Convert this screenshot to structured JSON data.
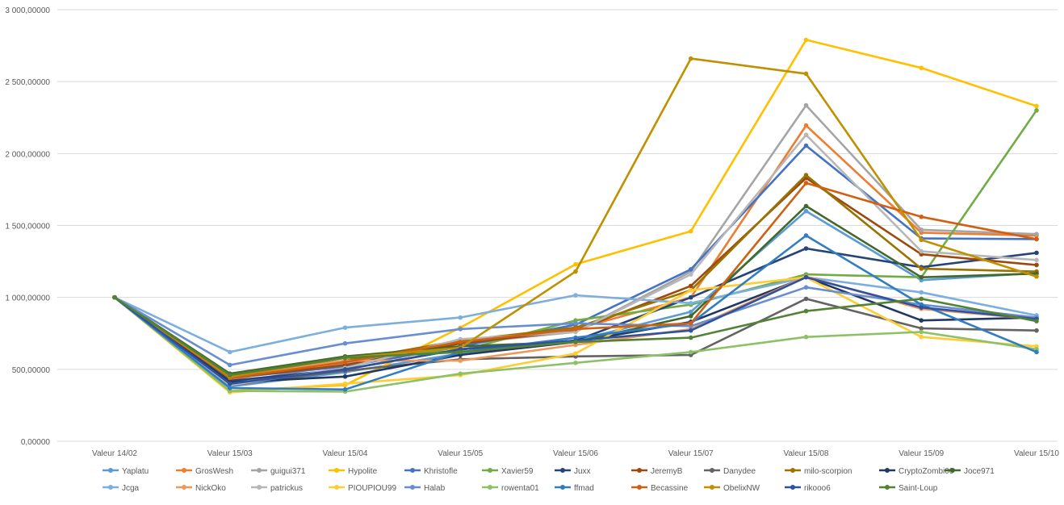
{
  "chart_data": {
    "type": "line",
    "title": "",
    "xlabel": "",
    "ylabel": "",
    "ylim": [
      0,
      3000
    ],
    "yticks": [
      {
        "value": 0,
        "label": "0,00000"
      },
      {
        "value": 500,
        "label": "500,00000"
      },
      {
        "value": 1000,
        "label": "1 000,00000"
      },
      {
        "value": 1500,
        "label": "1 500,00000"
      },
      {
        "value": 2000,
        "label": "2 000,00000"
      },
      {
        "value": 2500,
        "label": "2 500,00000"
      },
      {
        "value": 3000,
        "label": "3 000,00000"
      }
    ],
    "categories": [
      "Valeur 14/02",
      "Valeur 15/03",
      "Valeur 15/04",
      "Valeur 15/05",
      "Valeur 15/06",
      "Valeur 15/07",
      "Valeur 15/08",
      "Valeur 15/09",
      "Valeur 15/10"
    ],
    "grid": "horizontal",
    "legend_position": "bottom",
    "series": [
      {
        "name": "Yaplatu",
        "color": "#5B9BD5",
        "values": [
          1000,
          380,
          480,
          610,
          700,
          900,
          1600,
          1120,
          1170
        ]
      },
      {
        "name": "GrosWesh",
        "color": "#ED7D31",
        "values": [
          1000,
          430,
          560,
          700,
          780,
          1000,
          2195,
          1450,
          1430
        ]
      },
      {
        "name": "guigui371",
        "color": "#A5A5A5",
        "values": [
          1000,
          400,
          540,
          680,
          760,
          1180,
          2335,
          1470,
          1440
        ]
      },
      {
        "name": "Hypolite",
        "color": "#FFC000",
        "values": [
          1000,
          350,
          390,
          790,
          1230,
          1460,
          2790,
          2595,
          2330
        ]
      },
      {
        "name": "Khristofle",
        "color": "#4472C4",
        "values": [
          1000,
          440,
          520,
          660,
          810,
          1195,
          2055,
          1410,
          1405
        ]
      },
      {
        "name": "Xavier59",
        "color": "#70AD47",
        "values": [
          1000,
          470,
          580,
          630,
          840,
          950,
          1160,
          1140,
          2300
        ]
      },
      {
        "name": "Juxx",
        "color": "#264478",
        "values": [
          1000,
          420,
          500,
          640,
          700,
          1000,
          1340,
          1210,
          1310
        ]
      },
      {
        "name": "JeremyB",
        "color": "#9E480E",
        "values": [
          1000,
          440,
          530,
          680,
          770,
          1080,
          1830,
          1300,
          1225
        ]
      },
      {
        "name": "Danydee",
        "color": "#636363",
        "values": [
          1000,
          390,
          490,
          570,
          590,
          600,
          990,
          785,
          770
        ]
      },
      {
        "name": "milo-scorpion",
        "color": "#997300",
        "values": [
          1000,
          460,
          560,
          700,
          790,
          1050,
          1850,
          1200,
          1180
        ]
      },
      {
        "name": "CryptoZombi00",
        "color": "#203864",
        "values": [
          1000,
          410,
          450,
          600,
          690,
          830,
          1140,
          840,
          860
        ]
      },
      {
        "name": "Joce971",
        "color": "#43682B",
        "values": [
          1000,
          470,
          590,
          660,
          690,
          870,
          1635,
          1140,
          1165
        ]
      },
      {
        "name": "Jcga",
        "color": "#7CAFDD",
        "values": [
          1000,
          620,
          790,
          860,
          1015,
          960,
          1140,
          1035,
          875
        ]
      },
      {
        "name": "NickOko",
        "color": "#F1975A",
        "values": [
          1000,
          450,
          560,
          560,
          670,
          780,
          1145,
          920,
          850
        ]
      },
      {
        "name": "patrickus",
        "color": "#B7B7B7",
        "values": [
          1000,
          390,
          510,
          710,
          760,
          1160,
          2130,
          1320,
          1260
        ]
      },
      {
        "name": "PIOUPIOU99",
        "color": "#FFCD33",
        "values": [
          1000,
          340,
          400,
          460,
          610,
          1050,
          1140,
          725,
          660
        ]
      },
      {
        "name": "Halab",
        "color": "#698ED0",
        "values": [
          1000,
          530,
          680,
          780,
          820,
          800,
          1070,
          950,
          860
        ]
      },
      {
        "name": "rowenta01",
        "color": "#8CC168",
        "values": [
          1000,
          350,
          345,
          470,
          545,
          620,
          725,
          760,
          640
        ]
      },
      {
        "name": "ffmad",
        "color": "#327DC2",
        "values": [
          1000,
          370,
          360,
          620,
          720,
          820,
          1430,
          950,
          620
        ]
      },
      {
        "name": "Becassine",
        "color": "#D26012",
        "values": [
          1000,
          440,
          550,
          690,
          780,
          820,
          1795,
          1560,
          1405
        ]
      },
      {
        "name": "ObelixNW",
        "color": "#C09000",
        "values": [
          1000,
          450,
          580,
          650,
          1180,
          2660,
          2555,
          1400,
          1145
        ]
      },
      {
        "name": "rikooo6",
        "color": "#2F52A0",
        "values": [
          1000,
          400,
          500,
          640,
          700,
          770,
          1140,
          930,
          850
        ]
      },
      {
        "name": "Saint-Loup",
        "color": "#548235",
        "values": [
          1000,
          460,
          580,
          620,
          690,
          720,
          905,
          990,
          835
        ]
      }
    ]
  }
}
